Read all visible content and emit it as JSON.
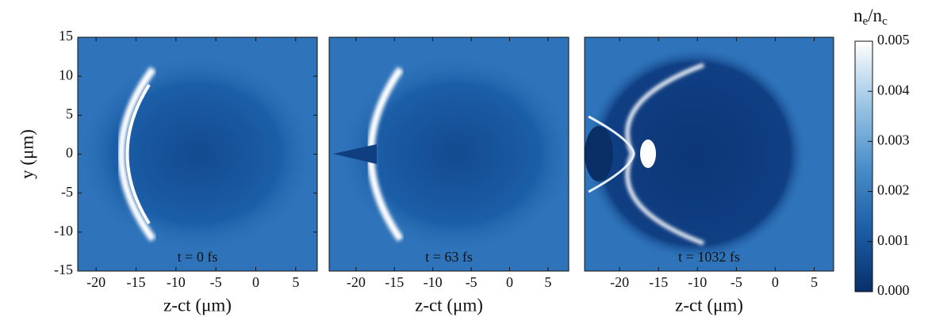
{
  "chart_data": [
    {
      "type": "heatmap",
      "annotation": "t = 0 fs",
      "xlabel": "z-ct (μm)",
      "ylabel": "y (μm)",
      "xlim": [
        -22.3,
        7.7
      ],
      "xticks": [
        -20,
        -15,
        -10,
        -5,
        0,
        5
      ],
      "ylim": [
        -15,
        15
      ],
      "yticks": [
        -15,
        -10,
        -5,
        0,
        5,
        10,
        15
      ]
    },
    {
      "type": "heatmap",
      "annotation": "t = 63 fs",
      "xlabel": "z-ct (μm)",
      "xlim": [
        -23.5,
        7.7
      ],
      "xticks": [
        -20,
        -15,
        -10,
        -5,
        0,
        5
      ],
      "ylim": [
        -15,
        15
      ]
    },
    {
      "type": "heatmap",
      "annotation": "t = 1032 fs",
      "xlabel": "z-ct (μm)",
      "xlim": [
        -24.5,
        7.5
      ],
      "xticks": [
        -20,
        -15,
        -10,
        -5,
        0,
        5
      ],
      "ylim": [
        -15,
        15
      ]
    }
  ],
  "colorbar": {
    "label": [
      "n",
      "e",
      "/n",
      "c"
    ],
    "clim": [
      0,
      0.005
    ],
    "ticks": [
      {
        "value": 0,
        "label": "0.000"
      },
      {
        "value": 0.001,
        "label": "0.001"
      },
      {
        "value": 0.002,
        "label": "0.002"
      },
      {
        "value": 0.003,
        "label": "0.003"
      },
      {
        "value": 0.004,
        "label": "0.004"
      },
      {
        "value": 0.005,
        "label": "0.005"
      }
    ]
  }
}
